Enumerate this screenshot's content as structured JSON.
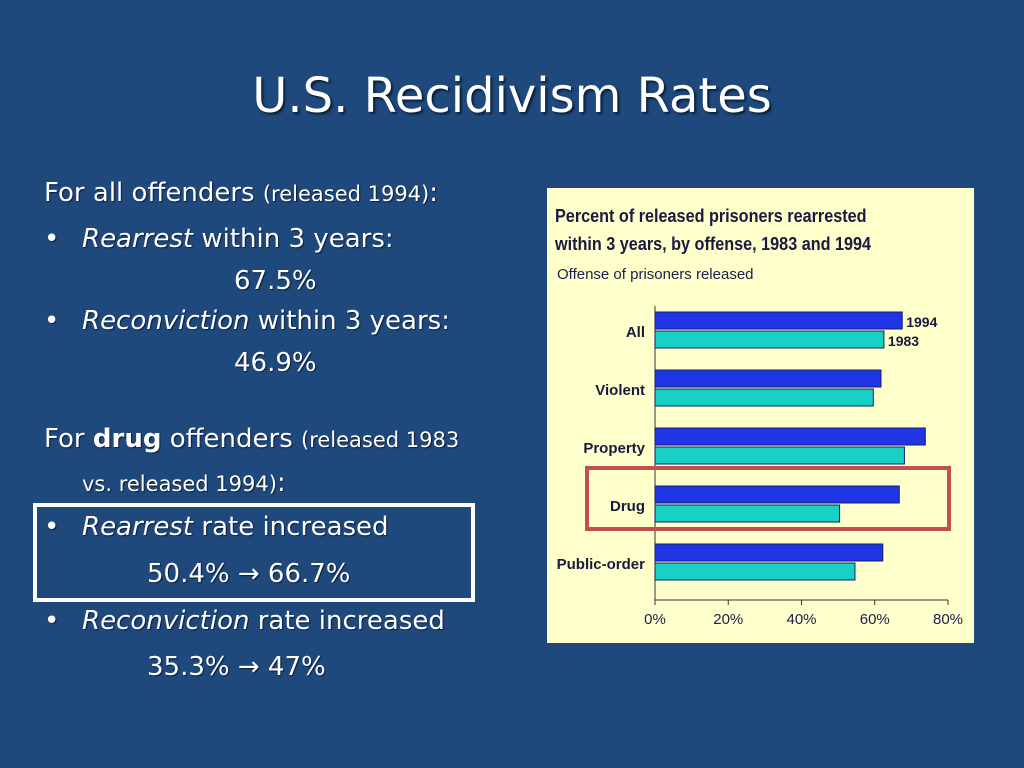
{
  "slide": {
    "title": "U.S. Recidivism Rates",
    "all": {
      "heading": "For all offenders",
      "heading_paren": "(released 1994)",
      "colon": ":",
      "rearrest_italic": "Rearrest",
      "rearrest_text": " within 3 years:",
      "rearrest_value": "67.5%",
      "reconviction_italic": "Reconviction",
      "reconviction_text": " within 3 years:",
      "reconviction_value": "46.9%"
    },
    "drug": {
      "prefix": "For ",
      "bold": "drug",
      "suffix": " offenders ",
      "paren1": "(released 1983",
      "paren2": "vs. released 1994)",
      "colon": ":",
      "rearrest_italic": "Rearrest",
      "rearrest_text": " rate increased",
      "rearrest_value": "50.4% → 66.7%",
      "reconviction_italic": "Reconviction",
      "reconviction_text": " rate increased",
      "reconviction_value": "35.3% → 47%"
    },
    "bullet": "•"
  },
  "chart_data": {
    "type": "bar",
    "orientation": "horizontal",
    "title_line1": "Percent of released prisoners rearrested",
    "title_line2": "within 3 years, by offense, 1983 and 1994",
    "subtitle": "Offense of prisoners released",
    "categories": [
      "All",
      "Violent",
      "Property",
      "Drug",
      "Public-order"
    ],
    "series": [
      {
        "name": "1994",
        "values": [
          67.5,
          61.7,
          73.8,
          66.7,
          62.2
        ],
        "color": "#1f35e6"
      },
      {
        "name": "1983",
        "values": [
          62.5,
          59.6,
          68.1,
          50.4,
          54.6
        ],
        "color": "#19d0c5"
      }
    ],
    "xlim": [
      0,
      80
    ],
    "xticks": [
      "0%",
      "20%",
      "40%",
      "60%",
      "80%"
    ],
    "legend": "inline labels on All bars",
    "highlight_category": "Drug",
    "highlight_color": "#c0504d"
  }
}
